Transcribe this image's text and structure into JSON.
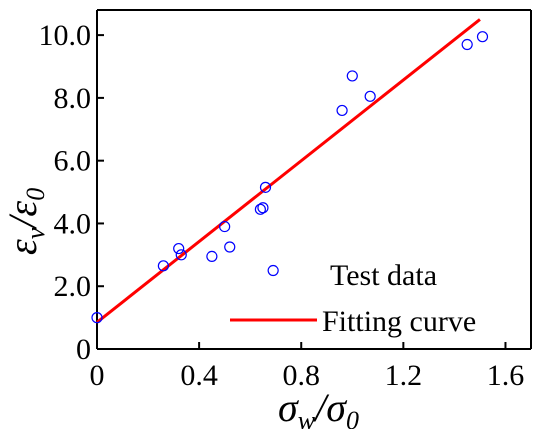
{
  "chart_data": {
    "type": "scatter",
    "xlabel": {
      "main": "σ",
      "sub": "w",
      "slash": "/",
      "main2": "σ",
      "sub2": "0"
    },
    "ylabel": {
      "main": "ε",
      "sub": "v",
      "slash": "/",
      "main2": "ε",
      "sub2": "0"
    },
    "xlim": [
      0,
      1.7
    ],
    "ylim": [
      0,
      10.8
    ],
    "xticks": [
      0,
      0.4,
      0.8,
      1.2,
      1.6
    ],
    "xtick_labels": [
      "0",
      "0.4",
      "0.8",
      "1.2",
      "1.6"
    ],
    "yticks": [
      0,
      2,
      4,
      6,
      8,
      10
    ],
    "ytick_labels": [
      "0",
      "2.0",
      "4.0",
      "6.0",
      "8.0",
      "10.0"
    ],
    "series": [
      {
        "name": "Test data",
        "kind": "scatter",
        "marker": "open-circle",
        "color": "#0000ff",
        "points": [
          [
            0.0,
            1.0
          ],
          [
            0.26,
            2.65
          ],
          [
            0.32,
            3.2
          ],
          [
            0.33,
            3.0
          ],
          [
            0.45,
            2.95
          ],
          [
            0.5,
            3.9
          ],
          [
            0.52,
            3.25
          ],
          [
            0.64,
            4.45
          ],
          [
            0.65,
            4.5
          ],
          [
            0.66,
            5.15
          ],
          [
            0.69,
            2.5
          ],
          [
            0.96,
            7.6
          ],
          [
            1.0,
            8.7
          ],
          [
            1.07,
            8.05
          ],
          [
            1.45,
            9.7
          ],
          [
            1.51,
            9.95
          ]
        ]
      },
      {
        "name": "Fitting curve",
        "kind": "line",
        "color": "#ff0000",
        "points": [
          [
            0.0,
            0.85
          ],
          [
            1.5,
            10.5
          ]
        ]
      }
    ],
    "legend_position": "bottom-right",
    "grid": false
  }
}
